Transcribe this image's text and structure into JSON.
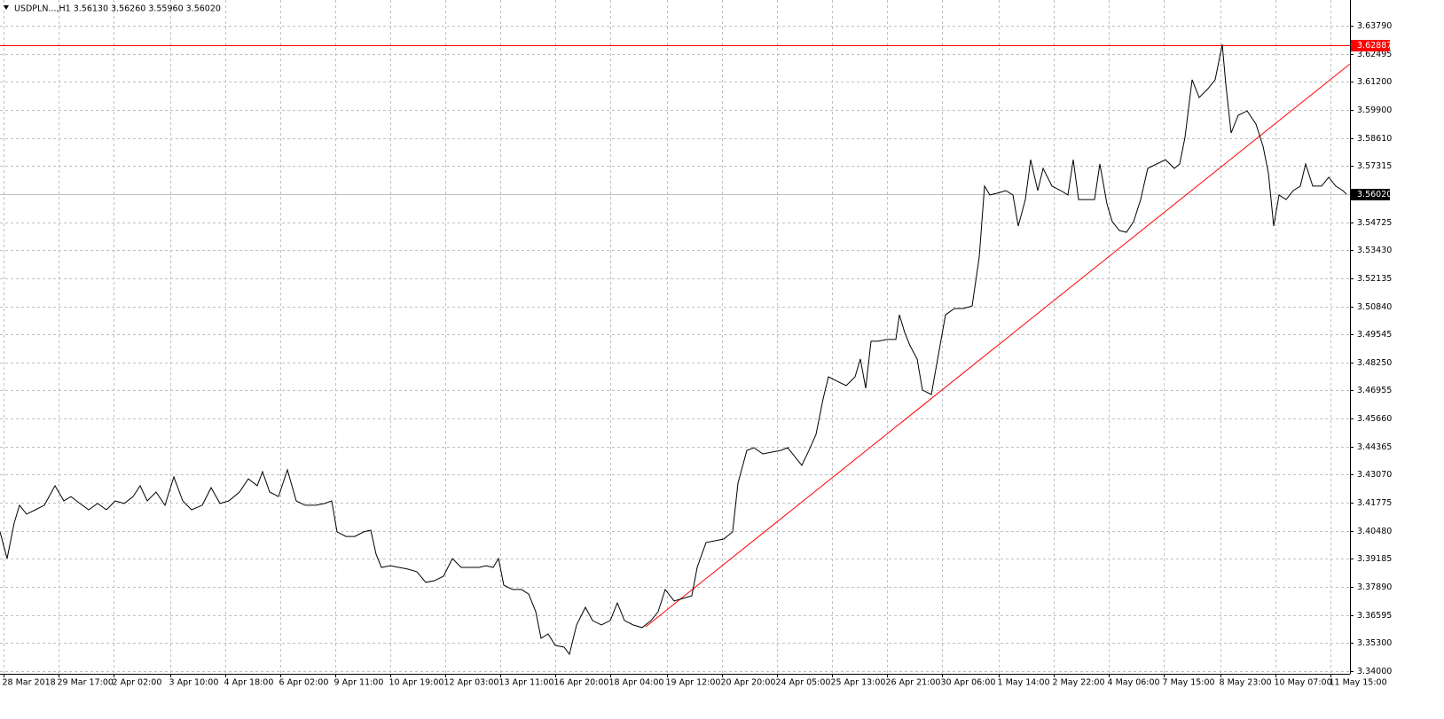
{
  "chart_data": {
    "type": "line",
    "title": "USDPLN...,H1  3.56130 3.56260 3.55960 3.56020",
    "xlim": [
      0,
      761
    ],
    "ylim": [
      3.3388,
      3.6498
    ],
    "xticks": [
      {
        "value": 2,
        "label": "28 Mar 2018"
      },
      {
        "value": 33,
        "label": "29 Mar 17:00"
      },
      {
        "value": 64,
        "label": "2 Apr 02:00"
      },
      {
        "value": 96,
        "label": "3 Apr 10:00"
      },
      {
        "value": 127,
        "label": "4 Apr 18:00"
      },
      {
        "value": 158,
        "label": "6 Apr 02:00"
      },
      {
        "value": 189,
        "label": "9 Apr 11:00"
      },
      {
        "value": 220,
        "label": "10 Apr 19:00"
      },
      {
        "value": 251,
        "label": "12 Apr 03:00"
      },
      {
        "value": 282,
        "label": "13 Apr 11:00"
      },
      {
        "value": 313,
        "label": "16 Apr 20:00"
      },
      {
        "value": 344,
        "label": "18 Apr 04:00"
      },
      {
        "value": 376,
        "label": "19 Apr 12:00"
      },
      {
        "value": 407,
        "label": "20 Apr 20:00"
      },
      {
        "value": 438,
        "label": "24 Apr 05:00"
      },
      {
        "value": 469,
        "label": "25 Apr 13:00"
      },
      {
        "value": 500,
        "label": "26 Apr 21:00"
      },
      {
        "value": 531,
        "label": "30 Apr 06:00"
      },
      {
        "value": 563,
        "label": "1 May 14:00"
      },
      {
        "value": 594,
        "label": "2 May 22:00"
      },
      {
        "value": 625,
        "label": "4 May 06:00"
      },
      {
        "value": 656,
        "label": "7 May 15:00"
      },
      {
        "value": 688,
        "label": "8 May 23:00"
      },
      {
        "value": 719,
        "label": "10 May 07:00"
      },
      {
        "value": 750,
        "label": "11 May 15:00"
      }
    ],
    "yticks": [
      {
        "value": 3.6379,
        "label": "3.63790"
      },
      {
        "value": 3.62495,
        "label": "3.62495"
      },
      {
        "value": 3.612,
        "label": "3.61200"
      },
      {
        "value": 3.599,
        "label": "3.59900"
      },
      {
        "value": 3.5861,
        "label": "3.58610"
      },
      {
        "value": 3.57315,
        "label": "3.57315"
      },
      {
        "value": 3.54725,
        "label": "3.54725"
      },
      {
        "value": 3.5343,
        "label": "3.53430"
      },
      {
        "value": 3.52135,
        "label": "3.52135"
      },
      {
        "value": 3.5084,
        "label": "3.50840"
      },
      {
        "value": 3.49545,
        "label": "3.49545"
      },
      {
        "value": 3.4825,
        "label": "3.48250"
      },
      {
        "value": 3.46955,
        "label": "3.46955"
      },
      {
        "value": 3.4566,
        "label": "3.45660"
      },
      {
        "value": 3.44365,
        "label": "3.44365"
      },
      {
        "value": 3.4307,
        "label": "3.43070"
      },
      {
        "value": 3.41775,
        "label": "3.41775"
      },
      {
        "value": 3.4048,
        "label": "3.40480"
      },
      {
        "value": 3.39185,
        "label": "3.39185"
      },
      {
        "value": 3.3789,
        "label": "3.37890"
      },
      {
        "value": 3.36595,
        "label": "3.36595"
      },
      {
        "value": 3.353,
        "label": "3.35300"
      },
      {
        "value": 3.34,
        "label": "3.34000"
      }
    ],
    "grid": true,
    "series": [
      {
        "name": "USDPLN",
        "color": "#000000",
        "x": [
          0,
          4,
          8,
          11,
          15,
          20,
          25,
          31,
          36,
          40,
          45,
          50,
          55,
          60,
          65,
          70,
          75,
          79,
          83,
          88,
          93,
          98,
          103,
          108,
          114,
          119,
          124,
          129,
          135,
          140,
          145,
          148,
          152,
          157,
          162,
          167,
          172,
          178,
          183,
          187,
          190,
          195,
          200,
          205,
          209,
          212,
          215,
          220,
          225,
          230,
          235,
          240,
          245,
          250,
          255,
          260,
          265,
          270,
          274,
          278,
          281,
          284,
          289,
          294,
          298,
          302,
          305,
          309,
          313,
          318,
          321,
          325,
          330,
          334,
          339,
          344,
          348,
          352,
          357,
          362,
          367,
          371,
          375,
          380,
          385,
          390,
          393,
          398,
          403,
          408,
          413,
          416,
          421,
          425,
          430,
          435,
          440,
          444,
          448,
          452,
          456,
          460,
          464,
          467,
          472,
          477,
          482,
          485,
          488,
          491,
          495,
          500,
          505,
          507,
          510,
          513,
          517,
          520,
          525,
          529,
          533,
          538,
          543,
          548,
          552,
          555,
          558,
          562,
          567,
          571,
          574,
          578,
          581,
          585,
          588,
          593,
          598,
          602,
          605,
          608,
          612,
          617,
          620,
          624,
          627,
          631,
          635,
          639,
          643,
          647,
          652,
          657,
          662,
          665,
          668,
          672,
          676,
          681,
          685,
          689,
          691,
          694,
          698,
          703,
          708,
          712,
          715,
          718,
          721,
          725,
          729,
          733,
          736,
          740,
          745,
          749,
          753,
          757,
          759
        ],
        "values": [
          3.4043,
          3.392,
          3.4084,
          3.4166,
          3.4125,
          3.4145,
          3.4166,
          3.4256,
          3.4186,
          3.4206,
          3.4174,
          3.4145,
          3.4174,
          3.4145,
          3.4186,
          3.4174,
          3.4206,
          3.4256,
          3.4186,
          3.4227,
          3.4166,
          3.4297,
          3.4186,
          3.4145,
          3.4166,
          3.4247,
          3.4174,
          3.4186,
          3.4227,
          3.4288,
          3.4256,
          3.4321,
          3.4227,
          3.4206,
          3.4329,
          3.4186,
          3.4166,
          3.4166,
          3.4174,
          3.4186,
          3.4043,
          3.4022,
          3.4022,
          3.4043,
          3.4051,
          3.394,
          3.3879,
          3.3887,
          3.3879,
          3.3871,
          3.3859,
          3.381,
          3.3818,
          3.3838,
          3.392,
          3.3879,
          3.3879,
          3.3879,
          3.3887,
          3.3879,
          3.392,
          3.3797,
          3.3777,
          3.3777,
          3.3756,
          3.3675,
          3.3552,
          3.3572,
          3.3519,
          3.3511,
          3.3478,
          3.3613,
          3.3695,
          3.3634,
          3.3613,
          3.3634,
          3.3715,
          3.3634,
          3.3613,
          3.3601,
          3.3634,
          3.3675,
          3.3777,
          3.3724,
          3.3736,
          3.3748,
          3.3879,
          3.3994,
          3.4002,
          3.401,
          3.4043,
          3.4268,
          3.4419,
          3.4432,
          3.4403,
          3.4411,
          3.4419,
          3.4432,
          3.4391,
          3.435,
          3.4419,
          3.4493,
          3.4657,
          3.4759,
          3.4738,
          3.4718,
          3.4759,
          3.4841,
          3.4706,
          3.4923,
          3.4923,
          3.4931,
          3.4931,
          3.5045,
          3.4963,
          3.4902,
          3.4841,
          3.4698,
          3.4677,
          3.4861,
          3.5045,
          3.5074,
          3.5074,
          3.5086,
          3.5311,
          3.5639,
          3.5598,
          3.5606,
          3.5618,
          3.5598,
          3.5455,
          3.5577,
          3.5761,
          3.5618,
          3.5721,
          3.5639,
          3.5618,
          3.5598,
          3.5761,
          3.5577,
          3.5577,
          3.5577,
          3.5741,
          3.5557,
          3.5475,
          3.5434,
          3.5426,
          3.5475,
          3.5577,
          3.5721,
          3.5741,
          3.5761,
          3.5721,
          3.5741,
          3.5864,
          3.613,
          3.6048,
          3.6089,
          3.613,
          3.6293,
          3.6109,
          3.5884,
          3.5966,
          3.5986,
          3.5925,
          3.5823,
          3.57,
          3.5455,
          3.5598,
          3.5577,
          3.5618,
          3.5639,
          3.5741,
          3.5639,
          3.5639,
          3.568,
          3.5639,
          3.5618,
          3.5602
        ]
      }
    ],
    "current_price": {
      "value": 3.5602,
      "label": "3.56020"
    },
    "level_line": {
      "value": 3.62887,
      "label": "3.62887",
      "color": "#ff0000"
    },
    "trendline": {
      "x": [
        364,
        761
      ],
      "values": [
        3.3605,
        3.6203
      ],
      "color": "#ff0000"
    }
  }
}
